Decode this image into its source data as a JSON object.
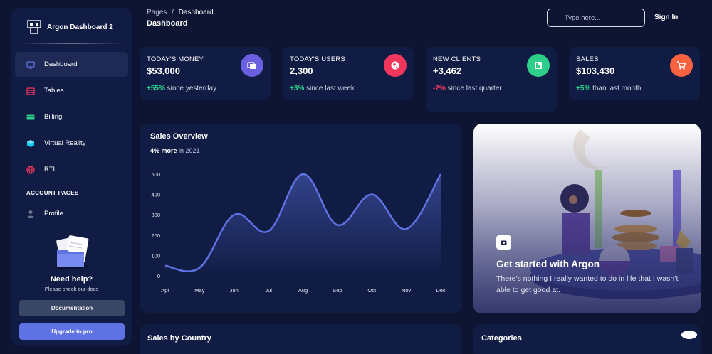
{
  "brand": {
    "name": "Argon Dashboard 2"
  },
  "sidebar": {
    "items": [
      {
        "label": "Dashboard",
        "icon": "monitor-icon",
        "active": true
      },
      {
        "label": "Tables",
        "icon": "calendar-icon"
      },
      {
        "label": "Billing",
        "icon": "credit-card-icon"
      },
      {
        "label": "Virtual Reality",
        "icon": "cube-icon"
      },
      {
        "label": "RTL",
        "icon": "globe-icon"
      }
    ],
    "section_title": "ACCOUNT PAGES",
    "account_items": [
      {
        "label": "Profile",
        "icon": "user-icon"
      }
    ],
    "help": {
      "title": "Need help?",
      "subtitle": "Please check our docs",
      "doc_button": "Documentation",
      "pro_button": "Upgrade to pro"
    }
  },
  "header": {
    "breadcrumb_root": "Pages",
    "breadcrumb_sep": "/",
    "breadcrumb_current": "Dashboard",
    "title": "Dashboard",
    "search_placeholder": "Type here...",
    "signin": "Sign In"
  },
  "stats": [
    {
      "label": "TODAY'S MONEY",
      "value": "$53,000",
      "change": "+55%",
      "change_text": " since yesterday",
      "positive": true,
      "icon": "money-icon",
      "color": "#6a5fe0"
    },
    {
      "label": "TODAY'S USERS",
      "value": "2,300",
      "change": "+3%",
      "change_text": " since last week",
      "positive": true,
      "icon": "globe-icon",
      "color": "#f5365c"
    },
    {
      "label": "NEW CLIENTS",
      "value": "+3,462",
      "change": "-2%",
      "change_text": " since last quarter",
      "positive": false,
      "icon": "paper-icon",
      "color": "#2dce89"
    },
    {
      "label": "SALES",
      "value": "$103,430",
      "change": "+5%",
      "change_text": " than last month",
      "positive": true,
      "icon": "cart-icon",
      "color": "#fb6340"
    }
  ],
  "colors": {
    "positive": "#2dce89",
    "negative": "#f5365c",
    "accent": "#5e72e4"
  },
  "sales_overview": {
    "title": "Sales Overview",
    "sub_bold": "4% more",
    "sub_rest": " in 2021"
  },
  "chart_data": {
    "type": "line",
    "title": "Sales Overview",
    "categories": [
      "Apr",
      "May",
      "Jun",
      "Jul",
      "Aug",
      "Sep",
      "Oct",
      "Nov",
      "Dec"
    ],
    "series": [
      {
        "values": [
          50,
          40,
          300,
          220,
          500,
          250,
          400,
          230,
          500
        ]
      }
    ],
    "yticks": [
      0,
      100,
      200,
      300,
      400,
      500
    ],
    "ylim": [
      0,
      500
    ],
    "grid": false,
    "color": "#5e72e4"
  },
  "get_started": {
    "title": "Get started with Argon",
    "description": "There’s nothing I really wanted to do in life that I wasn’t able to get good at."
  },
  "bottom": {
    "sales_by_country": "Sales by Country",
    "categories": "Categories"
  }
}
